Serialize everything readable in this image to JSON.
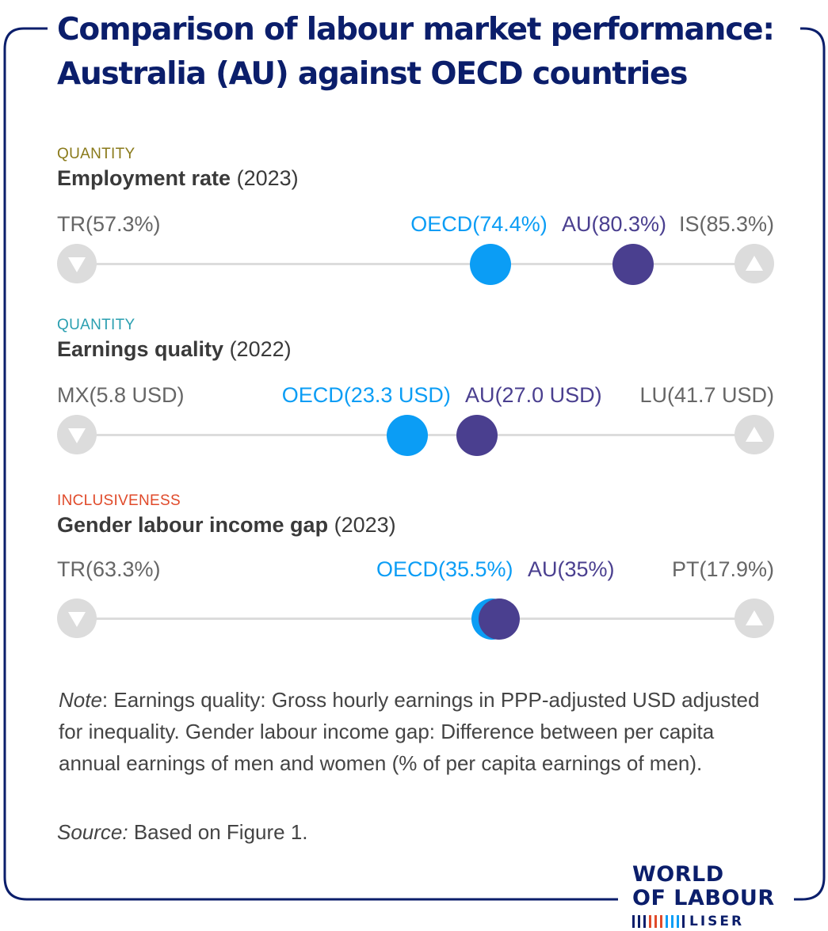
{
  "title": {
    "line1": "Comparison of labour market performance:",
    "line2": "Australia (AU) against OECD countries"
  },
  "colors": {
    "frame": "#0b1e6b",
    "title": "#0b1e6b",
    "oecd": "#0b9df5",
    "au": "#4a3f8f",
    "track": "#dcdcdc",
    "quantity_1": "#8a7a1a",
    "quantity_2": "#2a9fb0",
    "inclusiveness": "#e04a2a"
  },
  "chart_data": [
    {
      "type": "scatter",
      "category": "QUANTITY",
      "indicator": "Employment rate",
      "year": "(2023)",
      "scale": [
        57.3,
        85.3
      ],
      "min": {
        "label": "TR",
        "value_text": "(57.3%)",
        "value": 57.3,
        "icon": "triangle-down-icon"
      },
      "max": {
        "label": "IS",
        "value_text": "(85.3%)",
        "value": 85.3,
        "icon": "triangle-up-icon"
      },
      "oecd": {
        "label": "OECD",
        "value_text": "(74.4%)",
        "value": 74.4
      },
      "au": {
        "label": "AU",
        "value_text": "(80.3%)",
        "value": 80.3
      }
    },
    {
      "type": "scatter",
      "category": "QUANTITY",
      "indicator": "Earnings quality",
      "year": "(2022)",
      "scale": [
        5.8,
        41.7
      ],
      "min": {
        "label": "MX",
        "value_text": "(5.8 USD)",
        "value": 5.8,
        "icon": "triangle-down-icon"
      },
      "max": {
        "label": "LU",
        "value_text": "(41.7 USD)",
        "value": 41.7,
        "icon": "triangle-up-icon"
      },
      "oecd": {
        "label": "OECD",
        "value_text": "(23.3 USD)",
        "value": 23.3
      },
      "au": {
        "label": "AU",
        "value_text": "(27.0 USD)",
        "value": 27.0
      }
    },
    {
      "type": "scatter",
      "category": "INCLUSIVENESS",
      "indicator": "Gender labour income gap",
      "year": "(2023)",
      "scale": [
        63.3,
        17.9
      ],
      "min": {
        "label": "TR",
        "value_text": "(63.3%)",
        "value": 63.3,
        "icon": "triangle-down-icon"
      },
      "max": {
        "label": "PT",
        "value_text": "(17.9%)",
        "value": 17.9,
        "icon": "triangle-up-icon"
      },
      "oecd": {
        "label": "OECD",
        "value_text": "(35.5%)",
        "value": 35.5
      },
      "au": {
        "label": "AU",
        "value_text": "(35%)",
        "value": 35
      }
    }
  ],
  "note": {
    "label": "Note",
    "text": ": Earnings quality: Gross hourly earnings in PPP-adjusted USD adjusted for inequality. Gender labour income gap: Difference between per capita annual earnings of men and women (% of per capita earnings of men)."
  },
  "source": {
    "label": "Source:",
    "text": " Based on Figure 1."
  },
  "logo": {
    "line1": "WORLD",
    "line2": "OF LABOUR",
    "line3": "LISER"
  }
}
